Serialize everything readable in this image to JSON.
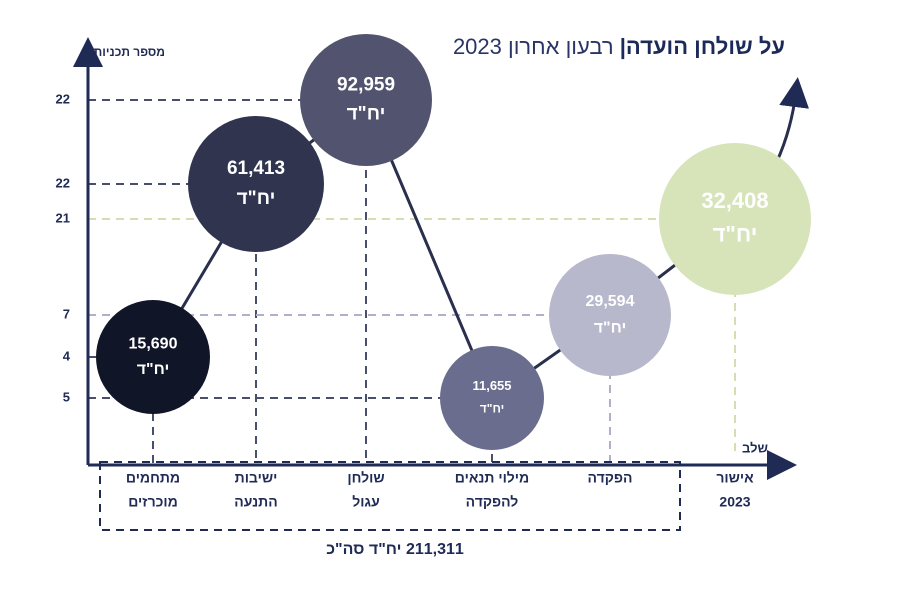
{
  "title": {
    "bold": "על שולחן הועדה|",
    "light": "רבעון אחרון 2023"
  },
  "y_axis_label": "מספר תכניות",
  "x_axis_label": "שלב",
  "unit_label": "יח\"ד",
  "total_label": "211,311 יח\"ד סה\"כ",
  "stages": [
    {
      "label": [
        "מתחמים",
        "מוכרזים"
      ],
      "plans": 4,
      "units": 15690,
      "units_label": "15,690",
      "color": "#111528"
    },
    {
      "label": [
        "ישיבות",
        "התנעה"
      ],
      "plans": 22,
      "units": 61413,
      "units_label": "61,413",
      "color": "#30344f"
    },
    {
      "label": [
        "שולחן",
        "עגול"
      ],
      "plans": 22,
      "units": 92959,
      "units_label": "92,959",
      "color": "#52546f"
    },
    {
      "label": [
        "מילוי תנאים",
        "להפקדה"
      ],
      "plans": 5,
      "units": 11655,
      "units_label": "11,655",
      "color": "#6a6d8d"
    },
    {
      "label": [
        "הפקדה"
      ],
      "plans": 7,
      "units": 29594,
      "units_label": "29,594",
      "color": "#b7b8cc"
    },
    {
      "label": [
        "אישור",
        "2023"
      ],
      "plans": 21,
      "units": 32408,
      "units_label": "32,408",
      "color": "#d7e3b9"
    }
  ]
}
